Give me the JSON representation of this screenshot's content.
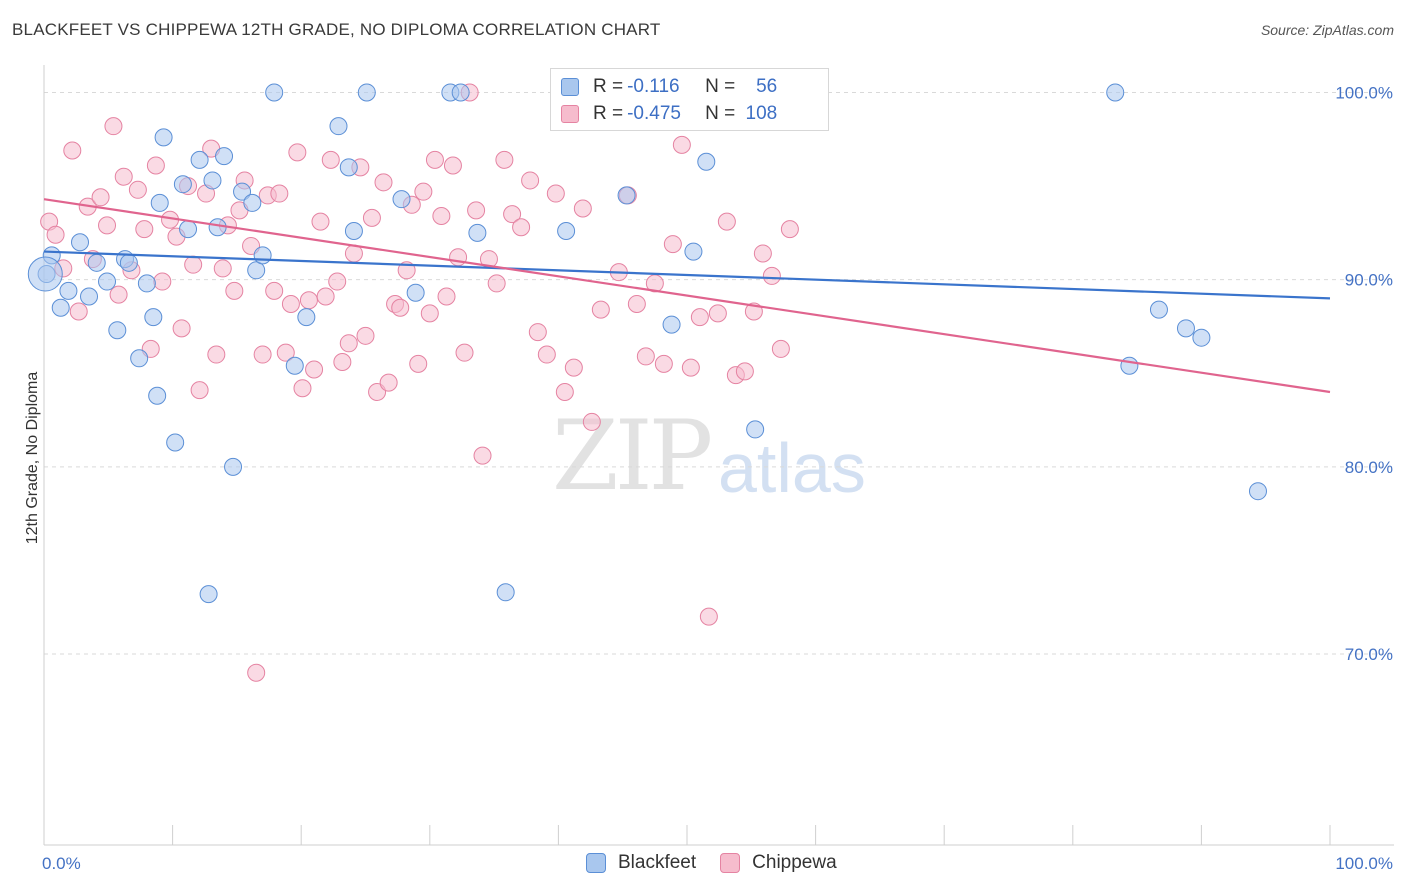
{
  "title": "BLACKFEET VS CHIPPEWA 12TH GRADE, NO DIPLOMA CORRELATION CHART",
  "source": "Source: ZipAtlas.com",
  "watermark": {
    "zip": "ZIP",
    "atlas": "atlas"
  },
  "legend": {
    "r_label": "R =",
    "n_label": "N =",
    "rows": [
      {
        "r": "-0.116",
        "n": "56"
      },
      {
        "r": "-0.475",
        "n": "108"
      }
    ]
  },
  "colors": {
    "blackfeet_fill": "#a9c7ee",
    "blackfeet_stroke": "#5b8fd6",
    "blackfeet_line": "#3a74cc",
    "chippewa_fill": "#f6bccd",
    "chippewa_stroke": "#e583a2",
    "chippewa_line": "#e0648e",
    "tick_text": "#4472c4",
    "grid": "#d9d9d9"
  },
  "chart_data": {
    "type": "scatter",
    "title": "BLACKFEET VS CHIPPEWA 12TH GRADE, NO DIPLOMA CORRELATION CHART",
    "xlabel": "",
    "ylabel": "12th Grade, No Diploma",
    "xlim": [
      0,
      100
    ],
    "ylim": [
      59.8,
      101.2
    ],
    "x_tick_labels": [
      "0.0%",
      "100.0%"
    ],
    "y_ticks": [
      70,
      80,
      90,
      100
    ],
    "y_tick_labels": [
      "70.0%",
      "80.0%",
      "90.0%",
      "100.0%"
    ],
    "grid": "horizontal dashed",
    "legend_position": "top-center",
    "series": [
      {
        "name": "Blackfeet",
        "r": -0.116,
        "n": 56,
        "trend": {
          "x": [
            0,
            100
          ],
          "y": [
            91.5,
            89.0
          ]
        },
        "x": [
          0.2,
          0.6,
          1.3,
          1.9,
          2.8,
          3.5,
          4.1,
          4.9,
          5.7,
          6.3,
          6.6,
          7.4,
          8.0,
          8.5,
          8.8,
          9.0,
          9.3,
          10.2,
          10.8,
          11.2,
          12.1,
          12.8,
          13.1,
          13.5,
          14.0,
          14.7,
          15.4,
          16.2,
          16.5,
          17.0,
          17.9,
          19.5,
          20.4,
          22.9,
          23.7,
          24.1,
          25.1,
          27.8,
          28.9,
          31.6,
          32.4,
          33.7,
          35.9,
          40.6,
          45.3,
          47.6,
          48.8,
          50.5,
          51.5,
          55.3,
          83.3,
          84.4,
          86.7,
          88.8,
          90.0,
          94.4
        ],
        "y": [
          90.3,
          91.3,
          88.5,
          89.4,
          92.0,
          89.1,
          90.9,
          89.9,
          87.3,
          91.1,
          90.9,
          85.8,
          89.8,
          88.0,
          83.8,
          94.1,
          97.6,
          81.3,
          95.1,
          92.7,
          96.4,
          73.2,
          95.3,
          92.8,
          96.6,
          80.0,
          94.7,
          94.1,
          90.5,
          91.3,
          100.0,
          85.4,
          88.0,
          98.2,
          96.0,
          92.6,
          100.0,
          94.3,
          89.3,
          100.0,
          100.0,
          92.5,
          73.3,
          92.6,
          94.5,
          100.0,
          87.6,
          91.5,
          96.3,
          82.0,
          100.0,
          85.4,
          88.4,
          87.4,
          86.9,
          78.7
        ]
      },
      {
        "name": "Chippewa",
        "r": -0.475,
        "n": 108,
        "trend": {
          "x": [
            0,
            100
          ],
          "y": [
            94.3,
            84.0
          ]
        },
        "x": [
          0.4,
          0.9,
          1.5,
          2.2,
          2.7,
          3.4,
          3.8,
          4.4,
          4.9,
          5.4,
          5.8,
          6.2,
          6.8,
          7.3,
          7.8,
          8.3,
          8.7,
          9.2,
          9.8,
          10.3,
          10.7,
          11.2,
          11.6,
          12.1,
          12.6,
          13.0,
          13.4,
          13.9,
          14.3,
          14.8,
          15.2,
          15.6,
          16.1,
          16.5,
          17.0,
          17.4,
          17.9,
          18.3,
          18.8,
          19.2,
          19.7,
          20.1,
          20.6,
          21.0,
          21.5,
          21.9,
          22.3,
          22.8,
          23.2,
          23.7,
          24.1,
          24.6,
          25.0,
          25.5,
          25.9,
          26.4,
          26.8,
          27.3,
          27.7,
          28.2,
          28.6,
          29.1,
          29.5,
          30.0,
          30.4,
          30.9,
          31.3,
          31.8,
          32.2,
          32.7,
          33.1,
          33.6,
          34.1,
          34.6,
          35.2,
          35.8,
          36.4,
          37.1,
          37.8,
          38.4,
          39.1,
          39.8,
          40.5,
          41.2,
          41.9,
          42.6,
          43.3,
          44.0,
          44.7,
          45.4,
          46.1,
          46.8,
          47.5,
          48.2,
          48.9,
          49.6,
          50.3,
          51.0,
          51.7,
          52.4,
          53.1,
          53.8,
          54.5,
          55.2,
          55.9,
          56.6,
          57.3,
          58.0
        ],
        "y": [
          93.1,
          92.4,
          90.6,
          96.9,
          88.3,
          93.9,
          91.1,
          94.4,
          92.9,
          98.2,
          89.2,
          95.5,
          90.5,
          94.8,
          92.7,
          86.3,
          96.1,
          89.9,
          93.2,
          92.3,
          87.4,
          95.0,
          90.8,
          84.1,
          94.6,
          97.0,
          86.0,
          90.6,
          92.9,
          89.4,
          93.7,
          95.3,
          91.8,
          69.0,
          86.0,
          94.5,
          89.4,
          94.6,
          86.1,
          88.7,
          96.8,
          84.2,
          88.9,
          85.2,
          93.1,
          89.1,
          96.4,
          89.9,
          85.6,
          86.6,
          91.4,
          96.0,
          87.0,
          93.3,
          84.0,
          95.2,
          84.5,
          88.7,
          88.5,
          90.5,
          94.0,
          85.5,
          94.7,
          88.2,
          96.4,
          93.4,
          89.1,
          96.1,
          91.2,
          86.1,
          100.0,
          93.7,
          80.6,
          91.1,
          89.8,
          96.4,
          93.5,
          92.8,
          95.3,
          87.2,
          86.0,
          94.6,
          84.0,
          85.3,
          93.8,
          82.4,
          88.4,
          99.0,
          90.4,
          94.5,
          88.7,
          85.9,
          89.8,
          85.5,
          91.9,
          97.2,
          85.3,
          88.0,
          72.0,
          88.2,
          93.1,
          84.9,
          85.1,
          88.3,
          91.4,
          90.2,
          86.3,
          92.7
        ]
      }
    ]
  }
}
